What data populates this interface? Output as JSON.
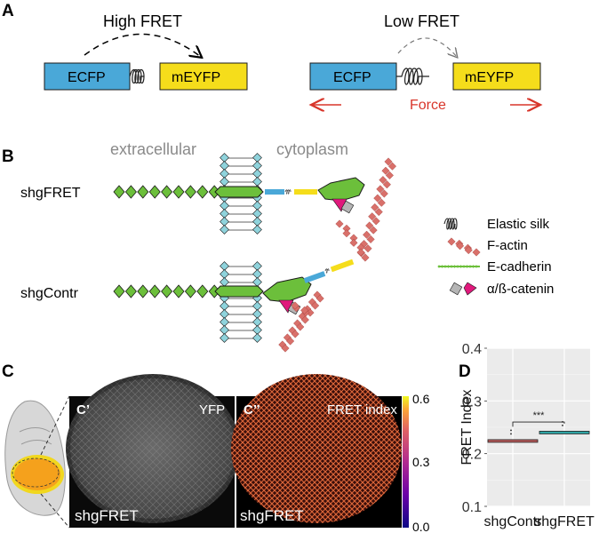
{
  "panels": {
    "a": "A",
    "b": "B",
    "c": "C",
    "d": "D"
  },
  "panel_a": {
    "high_fret": "High FRET",
    "low_fret": "Low FRET",
    "ecfp": "ECFP",
    "meyfp": "mEYFP",
    "force": "Force"
  },
  "panel_b": {
    "extracellular": "extracellular",
    "cytoplasm": "cytoplasm",
    "shgfret": "shgFRET",
    "shgcontr": "shgContr",
    "legend": {
      "elastic_silk": "Elastic silk",
      "f_actin": "F-actin",
      "e_cadherin": "E-cadherin",
      "catenin": "α/ß-catenin"
    }
  },
  "panel_c": {
    "c_prime": "C’",
    "c_dprime": "C’’",
    "yfp": "YFP",
    "fret_index": "FRET index",
    "shgfret_left": "shgFRET",
    "shgfret_right": "shgFRET",
    "colorbar_ticks": [
      "0.6",
      "0.3",
      "0.0"
    ]
  },
  "colors": {
    "ecfp": "#4aa8d8",
    "meyfp": "#f5dd1b",
    "force": "#d8352a",
    "cadherin": "#6cbf3b",
    "membrane": "#8fd3dc",
    "catenin_pink": "#e0197c",
    "actin": "#d9706a"
  },
  "chart_data": {
    "type": "box",
    "categories": [
      "shgContr",
      "shgFRET"
    ],
    "values": [
      0.224,
      0.24
    ],
    "ylabel": "FRET Index",
    "xlabel": "",
    "ylim": [
      0.1,
      0.4
    ],
    "yticks": [
      "0.1",
      "0.2",
      "0.3",
      "0.4"
    ],
    "significance": "***",
    "series_colors": [
      "#b85a5a",
      "#2fa3a3"
    ],
    "grid": true
  }
}
